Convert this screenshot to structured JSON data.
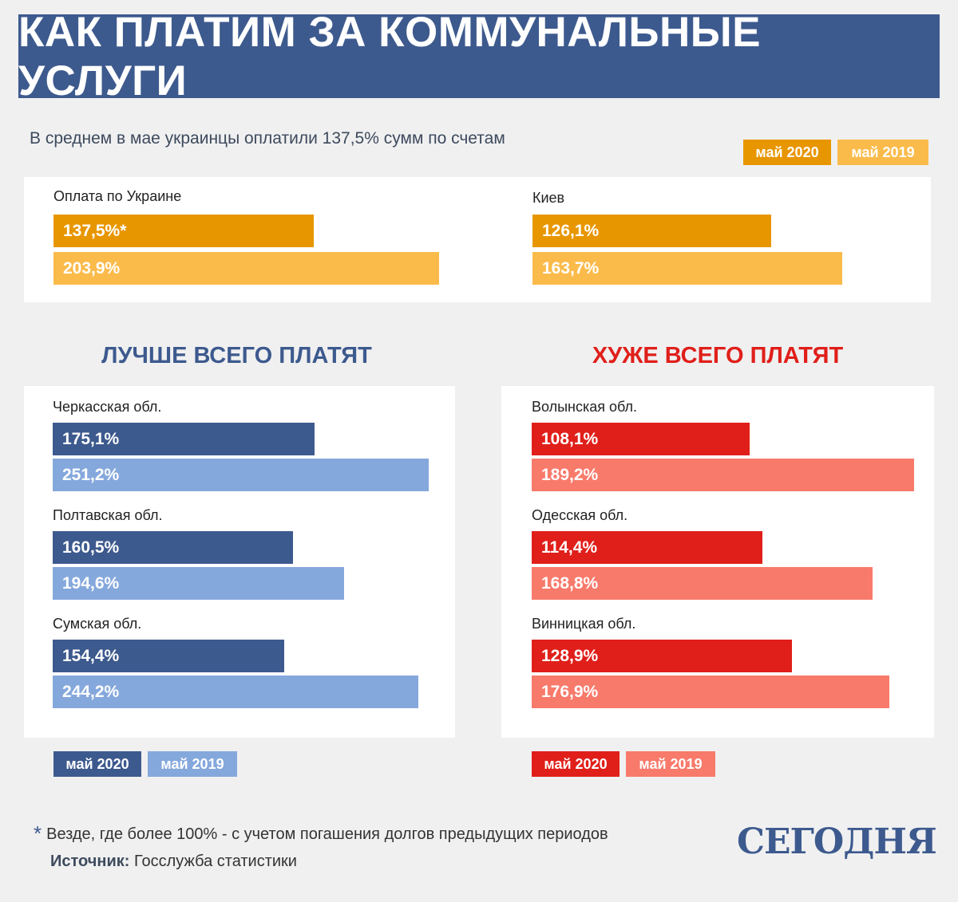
{
  "title": "КАК ПЛАТИМ ЗА КОММУНАЛЬНЫЕ УСЛУГИ",
  "subtitle": "В среднем в мае украинцы оплатили 137,5% сумм по счетам",
  "legend_top": {
    "a": "май 2020",
    "b": "май 2019"
  },
  "colors": {
    "header": "#3d5a8e",
    "top_2020": "#e89600",
    "top_2019": "#fbbb4a",
    "best_2020": "#3d5a8e",
    "best_2019": "#85a8dc",
    "worst_2020": "#e01f1a",
    "worst_2019": "#f87a6b"
  },
  "best_title": "ЛУЧШЕ ВСЕГО ПЛАТЯТ",
  "worst_title": "ХУЖЕ ВСЕГО ПЛАТЯТ",
  "legend_best": {
    "a": "май 2020",
    "b": "май 2019"
  },
  "legend_worst": {
    "a": "май 2020",
    "b": "май 2019"
  },
  "footnote": "Везде, где более 100% - с учетом погашения долгов  предыдущих периодов",
  "source_label": "Источник:",
  "source_text": " Госслужба статистики",
  "logo": "СЕГОДНЯ",
  "chart_data": [
    {
      "type": "bar",
      "group": "top",
      "categories": [
        "Оплата по Украине",
        "Киев"
      ],
      "series": [
        {
          "name": "май 2020",
          "values": [
            137.5,
            126.1
          ],
          "labels": [
            "137,5%*",
            "126,1%"
          ]
        },
        {
          "name": "май 2019",
          "values": [
            203.9,
            163.7
          ],
          "labels": [
            "203,9%",
            "163,7%"
          ]
        }
      ]
    },
    {
      "type": "bar",
      "group": "best",
      "title": "ЛУЧШЕ ВСЕГО ПЛАТЯТ",
      "categories": [
        "Черкасская обл.",
        "Полтавская обл.",
        "Сумская обл."
      ],
      "series": [
        {
          "name": "май 2020",
          "values": [
            175.1,
            160.5,
            154.4
          ],
          "labels": [
            "175,1%",
            "160,5%",
            "154,4%"
          ]
        },
        {
          "name": "май 2019",
          "values": [
            251.2,
            194.6,
            244.2
          ],
          "labels": [
            "251,2%",
            "194,6%",
            "244,2%"
          ]
        }
      ]
    },
    {
      "type": "bar",
      "group": "worst",
      "title": "ХУЖЕ ВСЕГО ПЛАТЯТ",
      "categories": [
        "Волынская обл.",
        "Одесская обл.",
        "Винницкая обл."
      ],
      "series": [
        {
          "name": "май 2020",
          "values": [
            108.1,
            114.4,
            128.9
          ],
          "labels": [
            "108,1%",
            "114,4%",
            "128,9%"
          ]
        },
        {
          "name": "май 2019",
          "values": [
            189.2,
            168.8,
            176.9
          ],
          "labels": [
            "189,2%",
            "168,8%",
            "176,9%"
          ]
        }
      ]
    }
  ]
}
